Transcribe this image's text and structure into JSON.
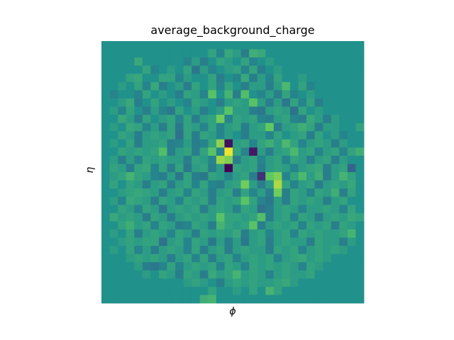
{
  "chart_data": {
    "type": "heatmap",
    "title": "average_background_charge",
    "xlabel": "ϕ",
    "ylabel": "η",
    "colormap": "viridis",
    "background_value": 0.0,
    "vlim": [
      -1.0,
      1.0
    ],
    "rows": 32,
    "cols": 32,
    "values": [
      [
        0,
        0,
        0,
        0,
        0,
        0,
        0,
        0,
        0,
        0,
        0,
        0,
        0,
        0,
        0,
        0,
        0,
        0,
        0,
        0,
        0,
        0,
        0,
        0,
        0,
        0,
        0,
        0,
        0,
        0,
        0,
        0
      ],
      [
        0,
        0,
        0,
        0,
        0,
        0,
        0,
        0,
        0,
        0,
        0,
        0,
        0,
        0.15,
        -0.1,
        0.2,
        0.1,
        -0.15,
        0.25,
        0.2,
        0,
        0,
        0,
        0,
        0,
        0,
        0,
        0,
        0,
        0,
        0,
        0
      ],
      [
        0,
        0,
        0,
        0,
        0.2,
        0,
        0,
        0,
        0,
        0,
        -0.1,
        0.1,
        -0.15,
        0,
        0.15,
        0.1,
        0,
        0.15,
        -0.1,
        0,
        0.1,
        0,
        0,
        0,
        0,
        0,
        0,
        0,
        0,
        0,
        0,
        0
      ],
      [
        0,
        0,
        0,
        0,
        0,
        0.15,
        -0.1,
        0,
        0.1,
        0,
        0.15,
        -0.2,
        0.1,
        -0.1,
        0,
        0.1,
        0.15,
        -0.1,
        0.15,
        -0.15,
        0,
        0.1,
        0,
        0,
        0,
        0,
        0,
        0,
        0,
        0,
        0,
        0
      ],
      [
        0,
        0,
        0,
        0.15,
        0.2,
        0,
        0,
        0.15,
        0.15,
        -0.1,
        0.1,
        0,
        0,
        0.15,
        -0.15,
        0,
        -0.1,
        0.2,
        -0.15,
        0.1,
        -0.1,
        0.15,
        0,
        0,
        0.1,
        0,
        0,
        0,
        0,
        0,
        0,
        0
      ],
      [
        0,
        0,
        0.1,
        0,
        0.15,
        -0.1,
        0.2,
        -0.15,
        0,
        0.1,
        -0.15,
        0.15,
        0,
        0.15,
        -0.1,
        0.15,
        0,
        -0.15,
        0.1,
        0.1,
        -0.15,
        0.1,
        0.35,
        0,
        0.15,
        -0.1,
        0,
        0,
        0,
        0,
        0,
        0
      ],
      [
        0,
        -0.1,
        0,
        0,
        -0.1,
        0.15,
        0,
        0.1,
        0,
        -0.15,
        0.15,
        0.1,
        -0.1,
        0.45,
        0,
        0.3,
        -0.15,
        0.4,
        0,
        -0.1,
        0.1,
        -0.15,
        0.15,
        -0.1,
        0,
        0.1,
        0,
        0,
        0,
        0,
        0,
        0
      ],
      [
        0,
        0,
        0.1,
        0.2,
        -0.15,
        0,
        0.15,
        0,
        0.1,
        0,
        -0.1,
        0.15,
        0.1,
        0,
        -0.15,
        0.1,
        0.15,
        0.1,
        0.45,
        0.1,
        -0.15,
        0.1,
        -0.2,
        0.15,
        -0.1,
        0.15,
        -0.15,
        0,
        0,
        0,
        0,
        0
      ],
      [
        0,
        0.1,
        -0.1,
        0.15,
        0,
        -0.15,
        0.1,
        -0.1,
        -0.2,
        0.15,
        0,
        0.1,
        -0.15,
        0,
        0.1,
        0.45,
        0.1,
        0.1,
        -0.15,
        -0.2,
        0.1,
        0.15,
        0.1,
        -0.25,
        0.15,
        0,
        0.1,
        0,
        0,
        0,
        0,
        0
      ],
      [
        0,
        0,
        0.2,
        0.1,
        -0.15,
        0.15,
        0,
        0.1,
        0.15,
        -0.1,
        0.15,
        -0.15,
        0.1,
        0.15,
        0.55,
        -0.1,
        0.15,
        0.1,
        0.15,
        -0.1,
        -0.15,
        0.1,
        0.15,
        -0.1,
        -0.15,
        0.2,
        0.1,
        -0.15,
        0.1,
        0,
        0,
        0
      ],
      [
        0,
        0.1,
        0,
        0.2,
        0.15,
        -0.1,
        0.1,
        -0.15,
        0.15,
        -0.2,
        0.15,
        0.1,
        -0.1,
        0.15,
        -0.1,
        0.1,
        0.15,
        -0.15,
        0.1,
        0.15,
        0.5,
        -0.15,
        0.1,
        0.15,
        0.25,
        0.15,
        -0.15,
        0.1,
        0.1,
        0,
        0,
        0.15
      ],
      [
        0,
        0,
        0.15,
        0.1,
        -0.15,
        0.1,
        0.15,
        0.1,
        0.15,
        -0.25,
        0.15,
        -0.15,
        0.15,
        0.1,
        -0.1,
        0.1,
        0,
        -0.15,
        0.1,
        0.1,
        -0.1,
        0.15,
        0,
        0.1,
        0.15,
        -0.15,
        0.15,
        0,
        0.1,
        -0.1,
        0,
        0
      ],
      [
        0,
        0.1,
        0,
        0.15,
        -0.15,
        0.1,
        0.1,
        0.15,
        -0.15,
        -0.1,
        0.1,
        -0.15,
        -0.1,
        0.15,
        0.65,
        -0.9,
        0.1,
        0.15,
        -0.1,
        0.15,
        0.25,
        0.1,
        0.35,
        0.15,
        -0.1,
        0.1,
        0.15,
        0.1,
        -0.15,
        0.1,
        0,
        0
      ],
      [
        0,
        0,
        0.15,
        0.1,
        0.15,
        0.1,
        0.15,
        0.4,
        -0.15,
        0.1,
        0.15,
        -0.15,
        0.15,
        0.45,
        -0.1,
        0.95,
        0.15,
        -0.1,
        -0.85,
        0.1,
        -0.15,
        0.1,
        0.15,
        0.35,
        0.1,
        0.15,
        -0.1,
        0.1,
        0.15,
        -0.1,
        0.15,
        0.25
      ],
      [
        0,
        0.1,
        -0.15,
        0.1,
        -0.1,
        0.15,
        0.1,
        0.15,
        0.1,
        0.1,
        -0.15,
        0.15,
        0.1,
        -0.1,
        0.7,
        0.6,
        -0.15,
        0.1,
        0.15,
        -0.1,
        0.1,
        0.15,
        -0.1,
        0.15,
        0.1,
        -0.15,
        0.1,
        0.15,
        -0.15,
        0.1,
        0,
        0
      ],
      [
        0,
        0.15,
        0.1,
        -0.15,
        0.15,
        0.2,
        -0.1,
        0.15,
        -0.15,
        0.15,
        -0.2,
        0.1,
        0.15,
        -0.15,
        0.1,
        -1.0,
        0.15,
        0.1,
        0.15,
        -0.15,
        0.1,
        0.15,
        0.1,
        -0.1,
        0.1,
        0.15,
        0.2,
        -0.15,
        0.1,
        0.15,
        -0.35,
        0
      ],
      [
        0,
        0.1,
        0.15,
        0.3,
        0.15,
        0.1,
        -0.1,
        -0.15,
        0.1,
        -0.2,
        0.15,
        -0.15,
        -0.2,
        0.15,
        0.1,
        -0.1,
        0.1,
        0.15,
        -0.15,
        -0.7,
        0.5,
        0.6,
        -0.1,
        0.15,
        0.35,
        0.1,
        0.25,
        -0.15,
        0.1,
        0.3,
        0.15,
        0
      ],
      [
        0,
        0.15,
        0,
        0.15,
        0.1,
        -0.15,
        0.1,
        0.15,
        -0.15,
        0.1,
        0.15,
        -0.1,
        0.15,
        -0.1,
        -0.15,
        0.1,
        0.15,
        0.55,
        0.1,
        -0.15,
        0.1,
        0.75,
        0.15,
        -0.1,
        0.1,
        0.15,
        -0.15,
        0.1,
        0.15,
        0.1,
        0.2,
        0
      ],
      [
        0,
        0,
        0.1,
        0.15,
        0.2,
        0.15,
        0.1,
        -0.15,
        0.1,
        0.15,
        -0.1,
        0.15,
        0.1,
        -0.15,
        0.1,
        0.15,
        -0.15,
        0.15,
        -0.1,
        0.1,
        -0.15,
        0.55,
        -0.15,
        0.15,
        0.1,
        -0.1,
        0.15,
        0.1,
        0.25,
        -0.15,
        0.15,
        0
      ],
      [
        0,
        0.1,
        -0.1,
        0.2,
        0.15,
        0.1,
        -0.15,
        0.15,
        0.1,
        -0.1,
        0.15,
        0.1,
        0.15,
        -0.15,
        0.15,
        0.1,
        0.15,
        0.45,
        0.15,
        -0.1,
        -0.2,
        0.1,
        -0.15,
        0.15,
        0.1,
        0.15,
        0.1,
        -0.15,
        0.1,
        0.15,
        0,
        0
      ],
      [
        0,
        0,
        0.15,
        0.1,
        -0.1,
        0.15,
        0.1,
        -0.2,
        0.1,
        0.15,
        0.1,
        0.15,
        -0.15,
        0.1,
        0.15,
        0.1,
        -0.1,
        0.15,
        0.1,
        -0.25,
        -0.15,
        0.1,
        0.15,
        0.1,
        -0.1,
        0.1,
        0.1,
        0.15,
        0.1,
        -0.1,
        0.15,
        0
      ],
      [
        0,
        0.2,
        0.1,
        0.15,
        0.1,
        -0.15,
        0.15,
        0.1,
        -0.15,
        0.1,
        0.15,
        0.1,
        0.15,
        0.1,
        0.45,
        0.15,
        0.15,
        0.1,
        0.15,
        0.4,
        -0.15,
        0.1,
        0.15,
        -0.1,
        0.15,
        0.1,
        -0.15,
        0.1,
        0.15,
        0.1,
        0.2,
        0.15
      ],
      [
        0,
        0,
        0.15,
        0.25,
        0.1,
        0.15,
        -0.1,
        0.15,
        0.1,
        -0.15,
        -0.1,
        0.15,
        0.1,
        -0.15,
        0.3,
        0.15,
        0.1,
        0.15,
        0.45,
        -0.15,
        0.1,
        0.15,
        0.1,
        0.15,
        -0.1,
        0.15,
        0.1,
        0.15,
        -0.15,
        0.15,
        0.1,
        0
      ],
      [
        0,
        0.1,
        0,
        0.15,
        -0.15,
        0.1,
        0.15,
        0.1,
        -0.1,
        0.15,
        0.1,
        -0.15,
        0.15,
        0.1,
        0.15,
        0.1,
        0.2,
        -0.15,
        0.1,
        0.15,
        -0.1,
        0.1,
        0.15,
        -0.1,
        0.15,
        0.1,
        0.15,
        0.1,
        0.1,
        0.15,
        0.3,
        0
      ],
      [
        0,
        0,
        0.1,
        0.15,
        0.1,
        0.15,
        0.15,
        -0.25,
        0.1,
        0.15,
        -0.1,
        0.15,
        0.1,
        -0.2,
        0.1,
        -0.15,
        0.1,
        -0.2,
        0.1,
        0.15,
        -0.15,
        0.1,
        0.15,
        0.1,
        0.1,
        -0.15,
        0.15,
        0.1,
        0.1,
        -0.15,
        0.1,
        0
      ],
      [
        0,
        0.1,
        0,
        0.15,
        -0.1,
        0.1,
        -0.15,
        0.1,
        0.15,
        0.1,
        -0.1,
        0.15,
        -0.15,
        0.1,
        0.15,
        -0.15,
        0.1,
        0.15,
        0.1,
        0.1,
        -0.15,
        0.15,
        0.1,
        0.15,
        -0.1,
        0.1,
        0.15,
        0.1,
        0.15,
        0.1,
        0,
        0
      ],
      [
        0,
        0,
        0,
        0.1,
        0.15,
        0.1,
        0.15,
        0.1,
        -0.15,
        0.1,
        0.15,
        -0.1,
        0.15,
        -0.15,
        0.1,
        0.15,
        -0.1,
        0.1,
        0.15,
        0.1,
        0.15,
        -0.1,
        0.1,
        0.15,
        0.2,
        0.1,
        0.15,
        0.1,
        0,
        0,
        0,
        0
      ],
      [
        0,
        0,
        0,
        0,
        0.1,
        -0.15,
        -0.2,
        -0.1,
        0.15,
        -0.1,
        0.1,
        0.15,
        0.1,
        0.15,
        -0.1,
        0.15,
        0.1,
        -0.1,
        0.15,
        0.1,
        0.15,
        0.1,
        0.15,
        0.1,
        -0.1,
        0.15,
        0.1,
        0,
        0,
        0,
        0,
        0
      ],
      [
        0,
        0,
        0,
        0,
        0,
        0.1,
        0,
        0.15,
        0.1,
        -0.15,
        0.15,
        0.1,
        -0.15,
        0.2,
        0.1,
        0.15,
        0.3,
        0.1,
        0.15,
        0.1,
        -0.1,
        0.1,
        0.15,
        0.1,
        0.1,
        0.15,
        0,
        0,
        0,
        0,
        0,
        0
      ],
      [
        0,
        0,
        0,
        0,
        0,
        0,
        0,
        0,
        0,
        0,
        0.1,
        0.15,
        0.1,
        0,
        -0.15,
        0.1,
        0.15,
        0.1,
        0.15,
        0.1,
        0.1,
        0.15,
        0.2,
        0.1,
        0,
        0,
        0,
        0,
        0,
        0,
        0,
        0
      ],
      [
        0,
        0,
        0,
        0,
        0,
        0,
        0,
        0,
        0,
        0,
        0,
        0,
        0,
        0.15,
        0,
        0,
        0.1,
        0,
        0.15,
        0,
        0.3,
        0.15,
        0,
        0,
        0,
        0,
        0,
        0,
        0,
        0,
        0,
        0
      ],
      [
        0,
        0,
        0,
        0,
        0,
        0,
        0,
        0,
        0,
        0,
        0,
        0,
        0.25,
        0.3,
        0,
        0,
        0,
        0,
        0,
        0,
        0,
        0,
        0,
        0,
        0,
        0,
        0,
        0,
        0,
        0,
        0,
        0
      ]
    ]
  }
}
